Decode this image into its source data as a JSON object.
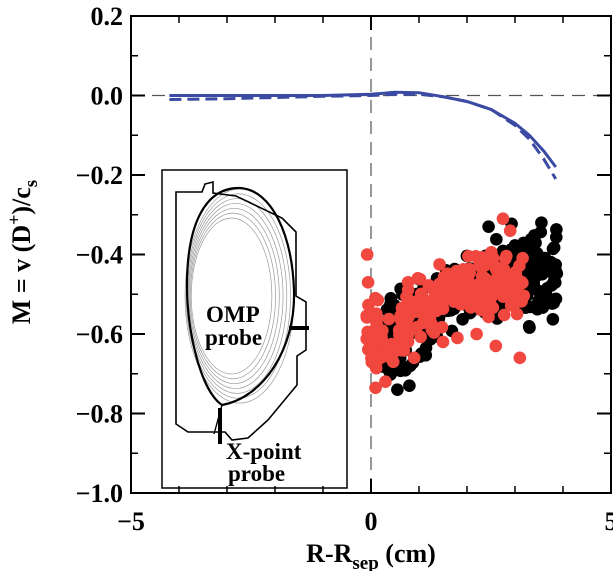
{
  "chart_data": {
    "type": "scatter",
    "title": "",
    "xlabel": "R-R",
    "xlabel_sub": "sep",
    "xlabel_units": " (cm)",
    "ylabel": "M = v (D",
    "ylabel_sup": "+",
    "ylabel_mid": ")/c",
    "ylabel_sub": "s",
    "xlim": [
      -5,
      5
    ],
    "ylim": [
      -1.0,
      0.2
    ],
    "xticks": [
      -5,
      0,
      5
    ],
    "xtick_labels": [
      "−5",
      "0",
      "5"
    ],
    "yticks": [
      0.2,
      0.0,
      -0.2,
      -0.4,
      -0.6,
      -0.8,
      -1.0
    ],
    "ytick_labels": [
      "0.2",
      "0.0",
      "−0.2",
      "−0.4",
      "−0.6",
      "−0.8",
      "−1.0"
    ],
    "grid": false,
    "reference_lines": [
      {
        "axis": "x",
        "value": 0,
        "style": "dashed"
      },
      {
        "axis": "y",
        "value": 0,
        "style": "dashed"
      }
    ],
    "colors": {
      "solid_line": "#3b4aa3",
      "dashed_line": "#3b4aa3",
      "black_points": "#000000",
      "red_points": "#f0473f"
    },
    "series": [
      {
        "kind": "line",
        "style": "solid",
        "x": [
          -4.2,
          -3,
          -2,
          -1,
          0,
          0.5,
          1,
          1.5,
          2,
          2.5,
          3,
          3.3,
          3.6,
          3.85
        ],
        "y": [
          0.0,
          0.0,
          0.0,
          0.0,
          0.003,
          0.008,
          0.007,
          -0.003,
          -0.015,
          -0.035,
          -0.07,
          -0.1,
          -0.14,
          -0.18
        ]
      },
      {
        "kind": "line",
        "style": "dashed",
        "x": [
          -4.2,
          -3,
          -2,
          -1,
          0,
          0.5,
          1,
          1.5,
          2,
          2.5,
          3,
          3.3,
          3.6,
          3.85
        ],
        "y": [
          -0.01,
          -0.008,
          -0.005,
          -0.002,
          0.0,
          0.003,
          0.003,
          -0.003,
          -0.015,
          -0.035,
          -0.075,
          -0.11,
          -0.16,
          -0.21
        ]
      },
      {
        "kind": "scatter",
        "color": "black",
        "segments": [
          {
            "x": [
              0.0,
              0.9
            ],
            "yc": [
              -0.63,
              -0.67
            ],
            "spread": 0.05,
            "n": 35
          },
          {
            "x": [
              0.3,
              1.4
            ],
            "yc": [
              -0.6,
              -0.54
            ],
            "spread": 0.08,
            "n": 60
          },
          {
            "x": [
              1.4,
              2.6
            ],
            "yc": [
              -0.52,
              -0.46
            ],
            "spread": 0.06,
            "n": 80
          },
          {
            "x": [
              2.6,
              3.9
            ],
            "yc": [
              -0.45,
              -0.44
            ],
            "spread": 0.09,
            "n": 130
          }
        ],
        "extra": [
          [
            0.55,
            -0.74
          ],
          [
            0.8,
            -0.73
          ],
          [
            3.55,
            -0.32
          ],
          [
            3.4,
            -0.36
          ],
          [
            2.45,
            -0.33
          ]
        ]
      },
      {
        "kind": "scatter",
        "color": "red",
        "segments": [
          {
            "x": [
              -0.1,
              0.15
            ],
            "yc": [
              -0.55,
              -0.62
            ],
            "spread": 0.09,
            "n": 25
          },
          {
            "x": [
              0.15,
              0.8
            ],
            "yc": [
              -0.63,
              -0.6
            ],
            "spread": 0.05,
            "n": 30
          },
          {
            "x": [
              0.6,
              1.6
            ],
            "yc": [
              -0.55,
              -0.5
            ],
            "spread": 0.06,
            "n": 60
          },
          {
            "x": [
              1.6,
              3.2
            ],
            "yc": [
              -0.49,
              -0.47
            ],
            "spread": 0.06,
            "n": 110
          }
        ],
        "extra": [
          [
            -0.08,
            -0.4
          ],
          [
            -0.06,
            -0.47
          ],
          [
            1.5,
            -0.62
          ],
          [
            1.8,
            -0.61
          ],
          [
            2.2,
            -0.6
          ],
          [
            2.75,
            -0.31
          ],
          [
            2.9,
            -0.34
          ],
          [
            2.6,
            -0.63
          ],
          [
            3.1,
            -0.66
          ],
          [
            0.3,
            -0.72
          ],
          [
            0.9,
            -0.66
          ]
        ]
      }
    ]
  },
  "inset": {
    "label_omp_line1": "OMP",
    "label_omp_line2": "probe",
    "label_xpt_line1": "X-point",
    "label_xpt_line2": "probe"
  }
}
